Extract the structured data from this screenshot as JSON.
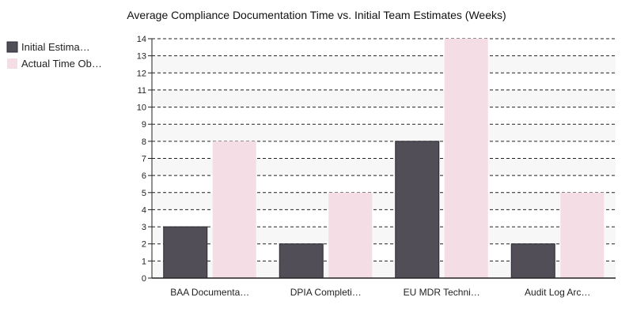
{
  "chart_data": {
    "type": "bar",
    "title": "Average Compliance Documentation Time vs. Initial Team Estimates (Weeks)",
    "categories": [
      "BAA Documenta…",
      "DPIA Completi…",
      "EU MDR Techni…",
      "Audit Log Arc…"
    ],
    "series": [
      {
        "name": "Initial Estima…",
        "color": "#514e58",
        "values": [
          3,
          2,
          8,
          2
        ]
      },
      {
        "name": "Actual Time Ob…",
        "color": "#f5dde6",
        "values": [
          8,
          5,
          14,
          5
        ]
      }
    ],
    "ylim": [
      0,
      14
    ],
    "yticks": [
      0,
      1,
      2,
      3,
      4,
      5,
      6,
      7,
      8,
      9,
      10,
      11,
      12,
      13,
      14
    ],
    "grid": true,
    "legend": "left"
  }
}
